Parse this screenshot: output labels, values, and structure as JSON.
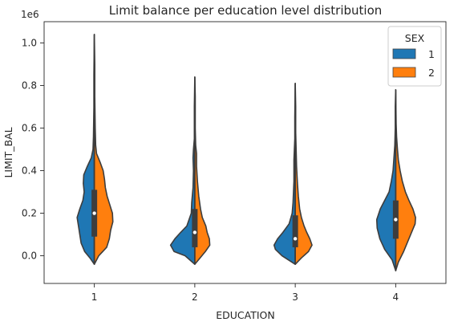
{
  "chart_data": {
    "type": "violin",
    "title": "Limit balance per education level distribution",
    "xlabel": "EDUCATION",
    "ylabel": "LIMIT_BAL",
    "y_offset_label": "1e6",
    "categories": [
      "1",
      "2",
      "3",
      "4"
    ],
    "ylim": [
      -0.13,
      1.1
    ],
    "yticks": [
      0.0,
      0.2,
      0.4,
      0.6,
      0.8,
      1.0
    ],
    "ytick_labels": [
      "0.0",
      "0.2",
      "0.4",
      "0.6",
      "0.8",
      "1.0"
    ],
    "split": true,
    "legend": {
      "title": "SEX",
      "position": "top-right"
    },
    "series": [
      {
        "name": "1",
        "color": "#1f77b4",
        "violins": [
          {
            "category": "1",
            "min": -0.04,
            "max": 1.04,
            "q1": 0.09,
            "median": 0.2,
            "q3": 0.31,
            "profile": [
              [
                -0.04,
                0.0
              ],
              [
                -0.01,
                0.1
              ],
              [
                0.02,
                0.22
              ],
              [
                0.06,
                0.3
              ],
              [
                0.1,
                0.33
              ],
              [
                0.14,
                0.36
              ],
              [
                0.18,
                0.39
              ],
              [
                0.22,
                0.33
              ],
              [
                0.26,
                0.26
              ],
              [
                0.3,
                0.23
              ],
              [
                0.34,
                0.25
              ],
              [
                0.38,
                0.24
              ],
              [
                0.42,
                0.16
              ],
              [
                0.46,
                0.07
              ],
              [
                0.5,
                0.03
              ],
              [
                0.56,
                0.02
              ],
              [
                0.7,
                0.01
              ],
              [
                0.85,
                0.01
              ],
              [
                1.04,
                0.0
              ]
            ]
          },
          {
            "category": "2",
            "min": -0.04,
            "max": 0.84,
            "q1": 0.04,
            "median": 0.11,
            "q3": 0.22,
            "profile": [
              [
                -0.04,
                0.0
              ],
              [
                0.0,
                0.22
              ],
              [
                0.02,
                0.47
              ],
              [
                0.05,
                0.55
              ],
              [
                0.08,
                0.45
              ],
              [
                0.11,
                0.32
              ],
              [
                0.14,
                0.18
              ],
              [
                0.2,
                0.08
              ],
              [
                0.25,
                0.07
              ],
              [
                0.32,
                0.04
              ],
              [
                0.4,
                0.03
              ],
              [
                0.46,
                0.04
              ],
              [
                0.5,
                0.03
              ],
              [
                0.55,
                0.01
              ],
              [
                0.7,
                0.01
              ],
              [
                0.84,
                0.0
              ]
            ]
          },
          {
            "category": "3",
            "min": -0.04,
            "max": 0.81,
            "q1": 0.04,
            "median": 0.08,
            "q3": 0.19,
            "profile": [
              [
                -0.04,
                0.0
              ],
              [
                0.0,
                0.3
              ],
              [
                0.03,
                0.45
              ],
              [
                0.05,
                0.48
              ],
              [
                0.08,
                0.4
              ],
              [
                0.11,
                0.28
              ],
              [
                0.15,
                0.14
              ],
              [
                0.2,
                0.07
              ],
              [
                0.25,
                0.05
              ],
              [
                0.3,
                0.04
              ],
              [
                0.35,
                0.03
              ],
              [
                0.45,
                0.03
              ],
              [
                0.5,
                0.02
              ],
              [
                0.55,
                0.01
              ],
              [
                0.65,
                0.01
              ],
              [
                0.81,
                0.0
              ]
            ]
          },
          {
            "category": "4",
            "min": -0.07,
            "max": 0.78,
            "q1": 0.08,
            "median": 0.17,
            "q3": 0.26,
            "profile": [
              [
                -0.07,
                0.0
              ],
              [
                -0.02,
                0.08
              ],
              [
                0.03,
                0.25
              ],
              [
                0.08,
                0.36
              ],
              [
                0.13,
                0.42
              ],
              [
                0.17,
                0.43
              ],
              [
                0.22,
                0.35
              ],
              [
                0.26,
                0.25
              ],
              [
                0.3,
                0.15
              ],
              [
                0.35,
                0.1
              ],
              [
                0.4,
                0.06
              ],
              [
                0.46,
                0.04
              ],
              [
                0.52,
                0.02
              ],
              [
                0.6,
                0.01
              ],
              [
                0.7,
                0.01
              ],
              [
                0.78,
                0.0
              ]
            ]
          }
        ]
      },
      {
        "name": "2",
        "color": "#ff7f0e",
        "violins": [
          {
            "category": "1",
            "min": -0.04,
            "max": 1.04,
            "q1": 0.09,
            "median": 0.2,
            "q3": 0.31,
            "profile": [
              [
                -0.04,
                0.0
              ],
              [
                0.0,
                0.1
              ],
              [
                0.04,
                0.28
              ],
              [
                0.08,
                0.34
              ],
              [
                0.12,
                0.37
              ],
              [
                0.16,
                0.42
              ],
              [
                0.2,
                0.41
              ],
              [
                0.24,
                0.35
              ],
              [
                0.28,
                0.29
              ],
              [
                0.32,
                0.25
              ],
              [
                0.36,
                0.23
              ],
              [
                0.4,
                0.2
              ],
              [
                0.44,
                0.13
              ],
              [
                0.48,
                0.05
              ],
              [
                0.52,
                0.03
              ],
              [
                0.6,
                0.02
              ],
              [
                0.75,
                0.01
              ],
              [
                0.9,
                0.01
              ],
              [
                1.04,
                0.0
              ]
            ]
          },
          {
            "category": "2",
            "min": -0.04,
            "max": 0.84,
            "q1": 0.04,
            "median": 0.11,
            "q3": 0.22,
            "profile": [
              [
                -0.04,
                0.0
              ],
              [
                -0.01,
                0.12
              ],
              [
                0.02,
                0.24
              ],
              [
                0.05,
                0.34
              ],
              [
                0.08,
                0.33
              ],
              [
                0.11,
                0.28
              ],
              [
                0.14,
                0.25
              ],
              [
                0.18,
                0.17
              ],
              [
                0.22,
                0.13
              ],
              [
                0.28,
                0.09
              ],
              [
                0.35,
                0.06
              ],
              [
                0.42,
                0.04
              ],
              [
                0.48,
                0.04
              ],
              [
                0.52,
                0.02
              ],
              [
                0.6,
                0.01
              ],
              [
                0.75,
                0.01
              ],
              [
                0.84,
                0.0
              ]
            ]
          },
          {
            "category": "3",
            "min": -0.04,
            "max": 0.81,
            "q1": 0.04,
            "median": 0.08,
            "q3": 0.19,
            "profile": [
              [
                -0.04,
                0.0
              ],
              [
                -0.01,
                0.14
              ],
              [
                0.02,
                0.3
              ],
              [
                0.05,
                0.38
              ],
              [
                0.08,
                0.33
              ],
              [
                0.11,
                0.26
              ],
              [
                0.14,
                0.2
              ],
              [
                0.18,
                0.14
              ],
              [
                0.22,
                0.1
              ],
              [
                0.28,
                0.07
              ],
              [
                0.34,
                0.05
              ],
              [
                0.42,
                0.03
              ],
              [
                0.5,
                0.02
              ],
              [
                0.58,
                0.01
              ],
              [
                0.7,
                0.01
              ],
              [
                0.81,
                0.0
              ]
            ]
          },
          {
            "category": "4",
            "min": -0.07,
            "max": 0.78,
            "q1": 0.08,
            "median": 0.17,
            "q3": 0.26,
            "profile": [
              [
                -0.07,
                0.0
              ],
              [
                -0.03,
                0.06
              ],
              [
                0.02,
                0.18
              ],
              [
                0.07,
                0.28
              ],
              [
                0.12,
                0.38
              ],
              [
                0.15,
                0.44
              ],
              [
                0.18,
                0.45
              ],
              [
                0.22,
                0.39
              ],
              [
                0.26,
                0.3
              ],
              [
                0.3,
                0.22
              ],
              [
                0.35,
                0.15
              ],
              [
                0.4,
                0.1
              ],
              [
                0.45,
                0.06
              ],
              [
                0.5,
                0.04
              ],
              [
                0.56,
                0.02
              ],
              [
                0.62,
                0.01
              ],
              [
                0.78,
                0.0
              ]
            ]
          }
        ]
      }
    ]
  }
}
